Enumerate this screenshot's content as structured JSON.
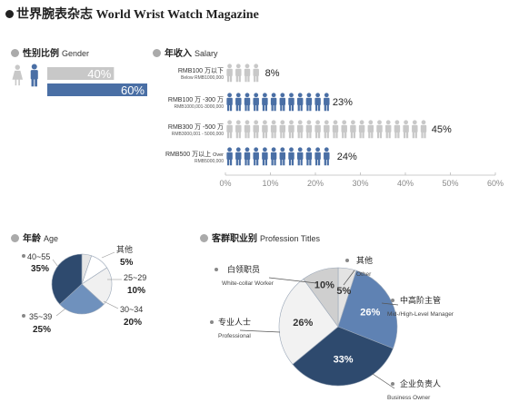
{
  "title": "世界腕表杂志 World Wrist Watch Magazine",
  "colors": {
    "blue": "#4a6fa5",
    "gray": "#c8c8c8",
    "dark": "#2e4a6e",
    "mid": "#7394bf",
    "light": "#e6e6e6"
  },
  "gender": {
    "title_cn": "性别比例",
    "title_en": "Gender",
    "icons": [
      "female-icon",
      "male-icon"
    ],
    "chart_data": {
      "type": "bar",
      "categories": [
        "female",
        "male"
      ],
      "values": [
        40,
        60
      ],
      "labels": [
        "40%",
        "60%"
      ],
      "colors": [
        "#c8c8c8",
        "#4a6fa5"
      ]
    }
  },
  "salary": {
    "title_cn": "年收入",
    "title_en": "Salary",
    "icon": "person-icon",
    "chart_data": {
      "type": "bar",
      "orientation": "horizontal",
      "categories": [
        {
          "cn": "RMB100 万以下",
          "en": "Below RMB1000,000"
        },
        {
          "cn": "RMB100 万 -300 万",
          "en": "RMB1000,001-3000,000"
        },
        {
          "cn": "RMB300 万 -500 万",
          "en": "RMB3000,001 - 5000,000"
        },
        {
          "cn": "RMB500 万以上",
          "en_a": "Over",
          "en": "RMB5000,000"
        }
      ],
      "values": [
        8,
        23,
        45,
        24
      ],
      "value_labels": [
        "8%",
        "23%",
        "45%",
        "24%"
      ],
      "row_colors": [
        "#c8c8c8",
        "#4a6fa5",
        "#c8c8c8",
        "#4a6fa5"
      ],
      "xlim": [
        0,
        60
      ],
      "ticks": [
        "0%",
        "10%",
        "20%",
        "30%",
        "40%",
        "50%",
        "60%"
      ]
    }
  },
  "age": {
    "title_cn": "年龄",
    "title_en": "Age",
    "chart_data": {
      "type": "pie",
      "slices": [
        {
          "label": "其他",
          "value": 5,
          "value_label": "5%",
          "color": "#e6e6e6"
        },
        {
          "label": "25~29",
          "value": 10,
          "value_label": "10%",
          "color": "#ffffff"
        },
        {
          "label": "30~34",
          "value": 20,
          "value_label": "20%",
          "color": "#f0f0f0"
        },
        {
          "label": "35~39",
          "value": 25,
          "value_label": "25%",
          "color": "#6f91bd"
        },
        {
          "label": "40~55",
          "value": 35,
          "value_label": "35%",
          "color": "#2e4a6e"
        }
      ]
    }
  },
  "profession": {
    "title_cn": "客群职业别",
    "title_en": "Profession Titles",
    "chart_data": {
      "type": "pie",
      "slices": [
        {
          "label": "其他",
          "label_en": "Other",
          "value": 5,
          "value_label": "5%",
          "color": "#e3e3e3"
        },
        {
          "label": "中高阶主管",
          "label_en": "Mid-/High-Level Manager",
          "value": 26,
          "value_label": "26%",
          "color": "#5f82b3"
        },
        {
          "label": "企业负责人",
          "label_en": "Business Owner",
          "value": 33,
          "value_label": "33%",
          "color": "#2e4a6e"
        },
        {
          "label": "专业人士",
          "label_en": "Professional",
          "value": 26,
          "value_label": "26%",
          "color": "#f2f2f2"
        },
        {
          "label": "白领职员",
          "label_en": "White-collar Worker",
          "value": 10,
          "value_label": "10%",
          "color": "#cfcfcf"
        }
      ]
    }
  }
}
